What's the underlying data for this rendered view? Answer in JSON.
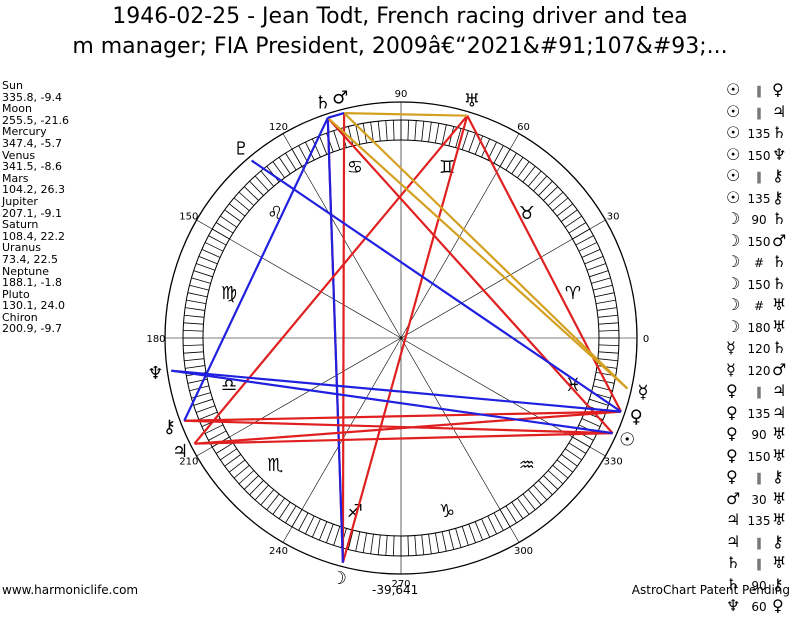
{
  "title_line1": "1946-02-25 - Jean Todt, French racing driver and tea",
  "title_line2": "m manager; FIA President, 2009â€“2021&#91;107&#93;...",
  "planets": [
    {
      "name": "Sun",
      "pos": "335.8, -9.4",
      "glyph": "☉",
      "lon": 335.8,
      "lat": -9.4
    },
    {
      "name": "Moon",
      "pos": "255.5, -21.6",
      "glyph": "☽",
      "lon": 255.5,
      "lat": -21.6
    },
    {
      "name": "Mercury",
      "pos": "347.4, -5.7",
      "glyph": "☿",
      "lon": 347.4,
      "lat": -5.7
    },
    {
      "name": "Venus",
      "pos": "341.5, -8.6",
      "glyph": "♀",
      "lon": 341.5,
      "lat": -8.6
    },
    {
      "name": "Mars",
      "pos": "104.2, 26.3",
      "glyph": "♂",
      "lon": 104.2,
      "lat": 26.3
    },
    {
      "name": "Jupiter",
      "pos": "207.1, -9.1",
      "glyph": "♃",
      "lon": 207.1,
      "lat": -9.1
    },
    {
      "name": "Saturn",
      "pos": "108.4, 22.2",
      "glyph": "♄",
      "lon": 108.4,
      "lat": 22.2
    },
    {
      "name": "Uranus",
      "pos": "73.4, 22.5",
      "glyph": "♅",
      "lon": 73.4,
      "lat": 22.5
    },
    {
      "name": "Neptune",
      "pos": "188.1, -1.8",
      "glyph": "♆",
      "lon": 188.1,
      "lat": -1.8
    },
    {
      "name": "Pluto",
      "pos": "130.1, 24.0",
      "glyph": "♇",
      "lon": 130.1,
      "lat": 24.0
    },
    {
      "name": "Chiron",
      "pos": "200.9, -9.7",
      "glyph": "⚷",
      "lon": 200.9,
      "lat": -9.7
    }
  ],
  "aspects": [
    {
      "p1": "☉",
      "a": "∥",
      "p2": "♀"
    },
    {
      "p1": "☉",
      "a": "∥",
      "p2": "♃"
    },
    {
      "p1": "☉",
      "a": "135",
      "p2": "♄"
    },
    {
      "p1": "☉",
      "a": "150",
      "p2": "♆"
    },
    {
      "p1": "☉",
      "a": "∥",
      "p2": "⚷"
    },
    {
      "p1": "☉",
      "a": "135",
      "p2": "⚷"
    },
    {
      "p1": "☽",
      "a": "90",
      "p2": "♄"
    },
    {
      "p1": "☽",
      "a": "150",
      "p2": "♂"
    },
    {
      "p1": "☽",
      "a": "#",
      "p2": "♄"
    },
    {
      "p1": "☽",
      "a": "150",
      "p2": "♄"
    },
    {
      "p1": "☽",
      "a": "#",
      "p2": "♅"
    },
    {
      "p1": "☽",
      "a": "180",
      "p2": "♅"
    },
    {
      "p1": "☿",
      "a": "120",
      "p2": "♄"
    },
    {
      "p1": "☿",
      "a": "120",
      "p2": "♂"
    },
    {
      "p1": "♀",
      "a": "∥",
      "p2": "♃"
    },
    {
      "p1": "♀",
      "a": "135",
      "p2": "♃"
    },
    {
      "p1": "♀",
      "a": "90",
      "p2": "♅"
    },
    {
      "p1": "♀",
      "a": "150",
      "p2": "♅"
    },
    {
      "p1": "♀",
      "a": "∥",
      "p2": "⚷"
    },
    {
      "p1": "♂",
      "a": "30",
      "p2": "♅"
    },
    {
      "p1": "♃",
      "a": "135",
      "p2": "♅"
    },
    {
      "p1": "♃",
      "a": "∥",
      "p2": "⚷"
    },
    {
      "p1": "♄",
      "a": "∥",
      "p2": "♅"
    },
    {
      "p1": "♄",
      "a": "90",
      "p2": "⚷"
    },
    {
      "p1": "♆",
      "a": "60",
      "p2": "♀"
    }
  ],
  "signs": [
    "♈",
    "♉",
    "♊",
    "♋",
    "♌",
    "♍",
    "♎",
    "♏",
    "♐",
    "♑",
    "♒",
    "♓"
  ],
  "degree_labels": [
    "0",
    "30",
    "60",
    "90",
    "120",
    "150",
    "180",
    "210",
    "240",
    "270",
    "300",
    "330"
  ],
  "chart_lines": [
    {
      "a": "Moon",
      "b": "Mars",
      "color": "#e02020"
    },
    {
      "a": "Moon",
      "b": "Saturn",
      "color": "#e02020"
    },
    {
      "a": "Moon",
      "b": "Uranus",
      "color": "#e02020"
    },
    {
      "a": "Moon",
      "b": "Saturn",
      "color": "#2020e0"
    },
    {
      "a": "Sun",
      "b": "Saturn",
      "color": "#e02020"
    },
    {
      "a": "Sun",
      "b": "Jupiter",
      "color": "#e02020"
    },
    {
      "a": "Sun",
      "b": "Chiron",
      "color": "#e02020"
    },
    {
      "a": "Venus",
      "b": "Jupiter",
      "color": "#e02020"
    },
    {
      "a": "Venus",
      "b": "Uranus",
      "color": "#e02020"
    },
    {
      "a": "Venus",
      "b": "Chiron",
      "color": "#e02020"
    },
    {
      "a": "Jupiter",
      "b": "Uranus",
      "color": "#e02020"
    },
    {
      "a": "Mercury",
      "b": "Mars",
      "color": "#d4a020"
    },
    {
      "a": "Mercury",
      "b": "Saturn",
      "color": "#d4a020"
    },
    {
      "a": "Mars",
      "b": "Uranus",
      "color": "#d4a020"
    },
    {
      "a": "Sun",
      "b": "Neptune",
      "color": "#2020e0"
    },
    {
      "a": "Venus",
      "b": "Pluto",
      "color": "#2020e0"
    },
    {
      "a": "Venus",
      "b": "Neptune",
      "color": "#2020e0"
    },
    {
      "a": "Saturn",
      "b": "Chiron",
      "color": "#2020e0"
    },
    {
      "a": "Mars",
      "b": "Saturn",
      "color": "#2020e0"
    }
  ],
  "coordinate_readout": "-39,641",
  "site": "www.harmoniclife.com",
  "patent": "AstroChart Patent Pending"
}
